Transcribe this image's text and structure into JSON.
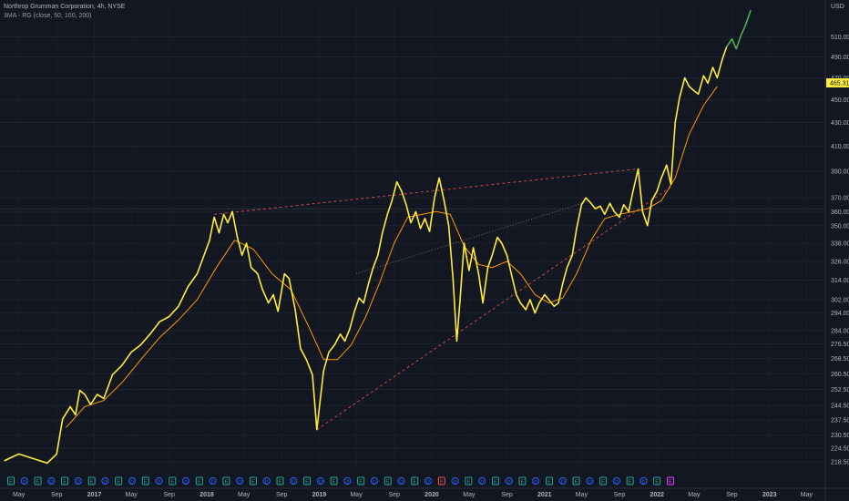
{
  "header": {
    "symbol_title": "Northrop Grumman Corporation, 4h, NYSE",
    "indicator_label": "3MA - RG (close, 50, 100, 200)"
  },
  "price_axis": {
    "currency": "USD",
    "ticks": [
      510.0,
      490.0,
      470.0,
      450.0,
      430.0,
      410.0,
      390.0,
      370.0,
      360.0,
      350.0,
      338.0,
      326.0,
      314.0,
      302.0,
      294.0,
      284.0,
      276.5,
      268.5,
      260.5,
      252.5,
      244.5,
      237.5,
      230.5,
      224.5,
      218.5
    ],
    "last_price": "465.31",
    "last_price_color": "#ffeb3b"
  },
  "time_axis": {
    "labels": [
      "May",
      "Sep",
      "2017",
      "May",
      "Sep",
      "2018",
      "May",
      "Sep",
      "2019",
      "May",
      "Sep",
      "2020",
      "May",
      "Sep",
      "2021",
      "May",
      "Sep",
      "2022",
      "May",
      "Sep",
      "2023",
      "May"
    ]
  },
  "event_markers": [
    {
      "type": "earnings",
      "letter": "E",
      "color": "#26a69a"
    },
    {
      "type": "dividend",
      "letter": "D",
      "color": "#2962ff"
    },
    {
      "type": "earnings",
      "letter": "E",
      "color": "#26a69a"
    },
    {
      "type": "dividend",
      "letter": "D",
      "color": "#2962ff"
    },
    {
      "type": "earnings",
      "letter": "E",
      "color": "#26a69a"
    },
    {
      "type": "dividend",
      "letter": "D",
      "color": "#2962ff"
    },
    {
      "type": "earnings",
      "letter": "E",
      "color": "#26a69a"
    },
    {
      "type": "dividend",
      "letter": "D",
      "color": "#2962ff"
    },
    {
      "type": "earnings",
      "letter": "E",
      "color": "#26a69a"
    },
    {
      "type": "dividend",
      "letter": "D",
      "color": "#2962ff"
    },
    {
      "type": "earnings",
      "letter": "E",
      "color": "#26a69a"
    },
    {
      "type": "dividend",
      "letter": "D",
      "color": "#2962ff"
    },
    {
      "type": "earnings",
      "letter": "E",
      "color": "#26a69a"
    },
    {
      "type": "dividend",
      "letter": "D",
      "color": "#2962ff"
    },
    {
      "type": "earnings",
      "letter": "E",
      "color": "#26a69a"
    },
    {
      "type": "dividend",
      "letter": "D",
      "color": "#2962ff"
    },
    {
      "type": "earnings",
      "letter": "E",
      "color": "#26a69a"
    },
    {
      "type": "dividend",
      "letter": "D",
      "color": "#2962ff"
    },
    {
      "type": "earnings",
      "letter": "E",
      "color": "#26a69a"
    },
    {
      "type": "dividend",
      "letter": "D",
      "color": "#2962ff"
    },
    {
      "type": "earnings",
      "letter": "E",
      "color": "#26a69a"
    },
    {
      "type": "dividend",
      "letter": "D",
      "color": "#2962ff"
    },
    {
      "type": "earnings",
      "letter": "E",
      "color": "#26a69a"
    },
    {
      "type": "dividend",
      "letter": "D",
      "color": "#2962ff"
    },
    {
      "type": "earnings",
      "letter": "E",
      "color": "#26a69a"
    },
    {
      "type": "dividend",
      "letter": "D",
      "color": "#2962ff"
    },
    {
      "type": "earnings",
      "letter": "E",
      "color": "#26a69a"
    },
    {
      "type": "dividend",
      "letter": "D",
      "color": "#2962ff"
    },
    {
      "type": "earnings",
      "letter": "E",
      "color": "#26a69a"
    },
    {
      "type": "dividend",
      "letter": "D",
      "color": "#2962ff"
    },
    {
      "type": "earnings",
      "letter": "E",
      "color": "#26a69a"
    },
    {
      "type": "dividend",
      "letter": "D",
      "color": "#2962ff"
    },
    {
      "type": "earnings",
      "letter": "E",
      "color": "#ef5350"
    },
    {
      "type": "dividend",
      "letter": "D",
      "color": "#2962ff"
    },
    {
      "type": "earnings",
      "letter": "E",
      "color": "#26a69a"
    },
    {
      "type": "dividend",
      "letter": "D",
      "color": "#2962ff"
    },
    {
      "type": "earnings",
      "letter": "E",
      "color": "#26a69a"
    },
    {
      "type": "dividend",
      "letter": "D",
      "color": "#2962ff"
    },
    {
      "type": "earnings",
      "letter": "E",
      "color": "#26a69a"
    },
    {
      "type": "dividend",
      "letter": "D",
      "color": "#2962ff"
    },
    {
      "type": "earnings",
      "letter": "E",
      "color": "#26a69a"
    },
    {
      "type": "dividend",
      "letter": "D",
      "color": "#2962ff"
    },
    {
      "type": "earnings",
      "letter": "E",
      "color": "#26a69a"
    },
    {
      "type": "dividend",
      "letter": "D",
      "color": "#2962ff"
    },
    {
      "type": "earnings",
      "letter": "E",
      "color": "#26a69a"
    },
    {
      "type": "dividend",
      "letter": "D",
      "color": "#2962ff"
    },
    {
      "type": "earnings",
      "letter": "E",
      "color": "#26a69a"
    },
    {
      "type": "dividend",
      "letter": "D",
      "color": "#2962ff"
    },
    {
      "type": "earnings",
      "letter": "E",
      "color": "#26a69a"
    },
    {
      "type": "earnings",
      "letter": "E",
      "color": "#e040fb"
    }
  ],
  "colors": {
    "background": "#131722",
    "price_line": "#ffeb3b",
    "price_line_recent": "#4caf50",
    "ma_line": "#ff9800",
    "trendline": "#ef5350",
    "midline": "#787b86"
  },
  "chart_data": {
    "type": "line",
    "y_scale": "log",
    "ylim": [
      215,
      545
    ],
    "x_range": [
      "2016-03",
      "2023-07"
    ],
    "series": [
      {
        "role": "price_close",
        "values": [
          [
            "2016-03-15",
            219
          ],
          [
            "2016-05-01",
            222
          ],
          [
            "2016-06-15",
            220
          ],
          [
            "2016-08-01",
            218
          ],
          [
            "2016-09-01",
            222
          ],
          [
            "2016-09-20",
            238
          ],
          [
            "2016-10-15",
            244
          ],
          [
            "2016-11-01",
            240
          ],
          [
            "2016-11-15",
            252
          ],
          [
            "2016-12-01",
            250
          ],
          [
            "2016-12-20",
            245
          ],
          [
            "2017-01-10",
            250
          ],
          [
            "2017-02-01",
            248
          ],
          [
            "2017-03-01",
            260
          ],
          [
            "2017-04-01",
            265
          ],
          [
            "2017-05-01",
            272
          ],
          [
            "2017-06-01",
            276
          ],
          [
            "2017-07-01",
            282
          ],
          [
            "2017-08-01",
            289
          ],
          [
            "2017-09-01",
            292
          ],
          [
            "2017-10-01",
            298
          ],
          [
            "2017-11-01",
            310
          ],
          [
            "2017-12-01",
            318
          ],
          [
            "2018-01-10",
            340
          ],
          [
            "2018-01-25",
            356
          ],
          [
            "2018-02-10",
            345
          ],
          [
            "2018-02-25",
            358
          ],
          [
            "2018-03-10",
            352
          ],
          [
            "2018-03-25",
            360
          ],
          [
            "2018-04-10",
            342
          ],
          [
            "2018-04-25",
            330
          ],
          [
            "2018-05-10",
            338
          ],
          [
            "2018-05-25",
            322
          ],
          [
            "2018-06-15",
            318
          ],
          [
            "2018-07-01",
            308
          ],
          [
            "2018-07-20",
            300
          ],
          [
            "2018-08-05",
            305
          ],
          [
            "2018-08-20",
            295
          ],
          [
            "2018-09-10",
            318
          ],
          [
            "2018-09-25",
            315
          ],
          [
            "2018-10-15",
            296
          ],
          [
            "2018-11-01",
            274
          ],
          [
            "2018-11-20",
            268
          ],
          [
            "2018-12-10",
            260
          ],
          [
            "2018-12-24",
            233
          ],
          [
            "2019-01-15",
            262
          ],
          [
            "2019-02-01",
            272
          ],
          [
            "2019-02-20",
            276
          ],
          [
            "2019-03-10",
            282
          ],
          [
            "2019-03-25",
            278
          ],
          [
            "2019-04-10",
            285
          ],
          [
            "2019-04-25",
            295
          ],
          [
            "2019-05-10",
            303
          ],
          [
            "2019-05-25",
            300
          ],
          [
            "2019-06-10",
            312
          ],
          [
            "2019-06-25",
            322
          ],
          [
            "2019-07-10",
            330
          ],
          [
            "2019-07-25",
            345
          ],
          [
            "2019-08-10",
            358
          ],
          [
            "2019-08-25",
            368
          ],
          [
            "2019-09-10",
            382
          ],
          [
            "2019-09-25",
            375
          ],
          [
            "2019-10-10",
            365
          ],
          [
            "2019-10-25",
            352
          ],
          [
            "2019-11-10",
            360
          ],
          [
            "2019-11-25",
            348
          ],
          [
            "2019-12-10",
            355
          ],
          [
            "2019-12-25",
            346
          ],
          [
            "2020-01-10",
            370
          ],
          [
            "2020-01-25",
            385
          ],
          [
            "2020-02-10",
            368
          ],
          [
            "2020-02-25",
            350
          ],
          [
            "2020-03-10",
            315
          ],
          [
            "2020-03-22",
            278
          ],
          [
            "2020-04-01",
            300
          ],
          [
            "2020-04-15",
            338
          ],
          [
            "2020-05-01",
            320
          ],
          [
            "2020-05-15",
            335
          ],
          [
            "2020-06-01",
            318
          ],
          [
            "2020-06-15",
            300
          ],
          [
            "2020-07-01",
            322
          ],
          [
            "2020-07-15",
            330
          ],
          [
            "2020-08-01",
            342
          ],
          [
            "2020-08-15",
            338
          ],
          [
            "2020-09-01",
            330
          ],
          [
            "2020-09-15",
            318
          ],
          [
            "2020-10-01",
            305
          ],
          [
            "2020-10-15",
            300
          ],
          [
            "2020-11-01",
            296
          ],
          [
            "2020-11-15",
            302
          ],
          [
            "2020-12-01",
            294
          ],
          [
            "2020-12-15",
            300
          ],
          [
            "2021-01-01",
            305
          ],
          [
            "2021-01-15",
            302
          ],
          [
            "2021-02-01",
            298
          ],
          [
            "2021-02-15",
            300
          ],
          [
            "2021-03-01",
            312
          ],
          [
            "2021-03-15",
            322
          ],
          [
            "2021-04-01",
            330
          ],
          [
            "2021-04-15",
            348
          ],
          [
            "2021-05-01",
            365
          ],
          [
            "2021-05-15",
            370
          ],
          [
            "2021-06-01",
            366
          ],
          [
            "2021-06-15",
            362
          ],
          [
            "2021-07-01",
            364
          ],
          [
            "2021-07-15",
            358
          ],
          [
            "2021-08-01",
            366
          ],
          [
            "2021-08-15",
            360
          ],
          [
            "2021-09-01",
            356
          ],
          [
            "2021-09-15",
            365
          ],
          [
            "2021-10-01",
            360
          ],
          [
            "2021-10-15",
            375
          ],
          [
            "2021-11-01",
            392
          ],
          [
            "2021-11-15",
            360
          ],
          [
            "2021-12-01",
            350
          ],
          [
            "2021-12-15",
            368
          ],
          [
            "2022-01-01",
            375
          ],
          [
            "2022-01-15",
            385
          ],
          [
            "2022-02-01",
            395
          ],
          [
            "2022-02-15",
            380
          ],
          [
            "2022-03-01",
            430
          ],
          [
            "2022-03-15",
            452
          ],
          [
            "2022-04-01",
            470
          ],
          [
            "2022-04-15",
            462
          ],
          [
            "2022-05-01",
            458
          ],
          [
            "2022-05-15",
            455
          ],
          [
            "2022-06-01",
            472
          ],
          [
            "2022-06-15",
            465
          ],
          [
            "2022-07-01",
            480
          ],
          [
            "2022-07-15",
            470
          ],
          [
            "2022-08-01",
            488
          ],
          [
            "2022-08-15",
            500
          ],
          [
            "2022-09-01",
            508
          ],
          [
            "2022-09-15",
            498
          ],
          [
            "2022-10-01",
            512
          ],
          [
            "2022-10-15",
            522
          ],
          [
            "2022-11-01",
            538
          ]
        ]
      },
      {
        "role": "moving_average",
        "values": [
          [
            "2016-10-01",
            234
          ],
          [
            "2016-12-01",
            244
          ],
          [
            "2017-02-01",
            247
          ],
          [
            "2017-04-01",
            256
          ],
          [
            "2017-06-01",
            268
          ],
          [
            "2017-08-01",
            280
          ],
          [
            "2017-10-01",
            290
          ],
          [
            "2017-12-01",
            302
          ],
          [
            "2018-02-01",
            322
          ],
          [
            "2018-04-01",
            340
          ],
          [
            "2018-06-01",
            334
          ],
          [
            "2018-08-01",
            318
          ],
          [
            "2018-10-01",
            308
          ],
          [
            "2018-12-01",
            285
          ],
          [
            "2019-01-15",
            268
          ],
          [
            "2019-03-01",
            268
          ],
          [
            "2019-04-15",
            276
          ],
          [
            "2019-06-01",
            292
          ],
          [
            "2019-07-15",
            312
          ],
          [
            "2019-09-01",
            338
          ],
          [
            "2019-10-15",
            356
          ],
          [
            "2019-12-01",
            358
          ],
          [
            "2020-01-15",
            360
          ],
          [
            "2020-03-01",
            358
          ],
          [
            "2020-04-15",
            336
          ],
          [
            "2020-06-01",
            324
          ],
          [
            "2020-07-15",
            322
          ],
          [
            "2020-09-01",
            326
          ],
          [
            "2020-10-15",
            318
          ],
          [
            "2020-12-01",
            305
          ],
          [
            "2021-01-15",
            300
          ],
          [
            "2021-03-01",
            303
          ],
          [
            "2021-04-15",
            318
          ],
          [
            "2021-06-01",
            340
          ],
          [
            "2021-07-15",
            355
          ],
          [
            "2021-09-01",
            358
          ],
          [
            "2021-10-15",
            360
          ],
          [
            "2021-12-01",
            362
          ],
          [
            "2022-01-15",
            368
          ],
          [
            "2022-03-01",
            385
          ],
          [
            "2022-04-15",
            420
          ],
          [
            "2022-06-01",
            445
          ],
          [
            "2022-07-15",
            462
          ]
        ]
      }
    ],
    "trendlines": [
      {
        "style": "dashed",
        "from": [
          "2018-01-25",
          358
        ],
        "to": [
          "2021-11-01",
          392
        ]
      },
      {
        "style": "dashed",
        "from": [
          "2018-12-24",
          233
        ],
        "to": [
          "2022-02-15",
          378
        ]
      },
      {
        "style": "dotted",
        "from": [
          "2019-05-01",
          318
        ],
        "to": [
          "2021-06-01",
          368
        ]
      }
    ]
  }
}
